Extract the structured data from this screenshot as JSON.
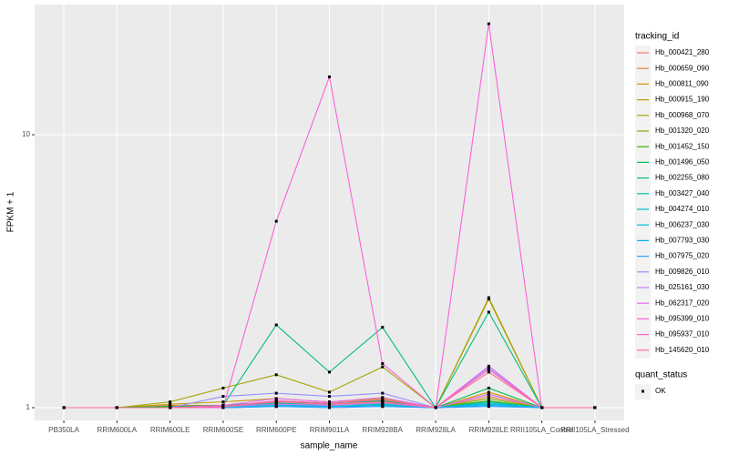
{
  "chart_data": {
    "type": "line",
    "x_label": "sample_name",
    "y_label": "FPKM + 1",
    "log_scale": true,
    "grid": true,
    "categories": [
      "PB350LA",
      "RRIM600LA",
      "RRIM600LE",
      "RRIM600SE",
      "RRIM600PE",
      "RRIM901LA",
      "RRIM928BA",
      "RRIM928LA",
      "RRIM928LE",
      "RRII105LA_Control",
      "RRII105LA_Stressed"
    ],
    "ylim": [
      0.898,
      30
    ],
    "yticks": [
      1,
      10
    ],
    "legend_title": "tracking_id",
    "point_legend": {
      "title": "quant_status",
      "levels": [
        "OK"
      ],
      "color": "#000000"
    },
    "series": [
      {
        "name": "Hb_000421_280",
        "color": "#F8766D",
        "values": [
          1,
          1,
          1.01,
          1.01,
          1.06,
          1.04,
          1.06,
          1,
          1.1,
          1,
          1
        ]
      },
      {
        "name": "Hb_000659_090",
        "color": "#EA8331",
        "values": [
          1,
          1,
          1.02,
          1.02,
          1.05,
          1.03,
          1.05,
          1,
          1.12,
          1,
          1
        ]
      },
      {
        "name": "Hb_000811_090",
        "color": "#D89000",
        "values": [
          1,
          1,
          1.01,
          1.02,
          1.04,
          1.02,
          1.04,
          1,
          1.14,
          1,
          1
        ]
      },
      {
        "name": "Hb_000915_190",
        "color": "#C09B00",
        "values": [
          1,
          1,
          1.03,
          1.05,
          1.08,
          1.05,
          1.08,
          1,
          2.5,
          1,
          1
        ]
      },
      {
        "name": "Hb_000968_070",
        "color": "#A3A500",
        "values": [
          1,
          1,
          1.05,
          1.18,
          1.32,
          1.14,
          1.41,
          1,
          2.53,
          1,
          1
        ]
      },
      {
        "name": "Hb_001320_020",
        "color": "#7CAE00",
        "values": [
          1,
          1,
          1.01,
          1.01,
          1.03,
          1.02,
          1.03,
          1,
          1.08,
          1,
          1
        ]
      },
      {
        "name": "Hb_001452_150",
        "color": "#39B600",
        "values": [
          1,
          1,
          1,
          1.01,
          1.03,
          1.02,
          1.03,
          1,
          1.06,
          1,
          1
        ]
      },
      {
        "name": "Hb_001496_050",
        "color": "#00BB4E",
        "values": [
          1,
          1,
          1.01,
          1.02,
          1.05,
          1.04,
          1.06,
          1,
          1.18,
          1,
          1
        ]
      },
      {
        "name": "Hb_002255_080",
        "color": "#00BF7D",
        "values": [
          1,
          1,
          1,
          1.02,
          2.01,
          1.35,
          1.97,
          1,
          2.24,
          1,
          1
        ]
      },
      {
        "name": "Hb_003427_040",
        "color": "#00C1A3",
        "values": [
          1,
          1,
          1,
          1.01,
          1.04,
          1.02,
          1.03,
          1,
          1.05,
          1,
          1
        ]
      },
      {
        "name": "Hb_004274_010",
        "color": "#00BFC4",
        "values": [
          1,
          1,
          1,
          1.01,
          1.02,
          1.02,
          1.03,
          1,
          1.04,
          1,
          1
        ]
      },
      {
        "name": "Hb_006237_030",
        "color": "#00BAE0",
        "values": [
          1,
          1,
          1,
          1,
          1.02,
          1.01,
          1.02,
          1,
          1.03,
          1,
          1
        ]
      },
      {
        "name": "Hb_007793_030",
        "color": "#00B0F6",
        "values": [
          1,
          1,
          1,
          1,
          1.01,
          1.01,
          1.01,
          1,
          1.02,
          1,
          1
        ]
      },
      {
        "name": "Hb_007975_020",
        "color": "#35A2FF",
        "values": [
          1,
          1,
          1,
          1,
          1.01,
          1,
          1.01,
          1,
          1.01,
          1,
          1
        ]
      },
      {
        "name": "Hb_009826_010",
        "color": "#9590FF",
        "values": [
          1,
          1,
          1,
          1.1,
          1.13,
          1.1,
          1.13,
          1,
          1.4,
          1,
          1
        ]
      },
      {
        "name": "Hb_025161_030",
        "color": "#C77CFF",
        "values": [
          1,
          1,
          1,
          1.01,
          1.03,
          1.02,
          1.04,
          1,
          1.12,
          1,
          1
        ]
      },
      {
        "name": "Hb_062317_020",
        "color": "#E76BF3",
        "values": [
          1,
          1,
          1,
          1.02,
          1.08,
          1.05,
          1.09,
          1,
          1.42,
          1,
          1
        ]
      },
      {
        "name": "Hb_095399_010",
        "color": "#FA62DB",
        "values": [
          1,
          1,
          1,
          1,
          4.82,
          16.3,
          1.45,
          1,
          25.5,
          1,
          1
        ]
      },
      {
        "name": "Hb_095937_010",
        "color": "#FF62BC",
        "values": [
          1,
          1,
          1,
          1.01,
          1.06,
          1.04,
          1.07,
          1,
          1.38,
          1,
          1
        ]
      },
      {
        "name": "Hb_145620_010",
        "color": "#FF6C91",
        "values": [
          1,
          1,
          1,
          1.01,
          1.05,
          1.03,
          1.05,
          1,
          1.35,
          1,
          1
        ]
      }
    ]
  }
}
